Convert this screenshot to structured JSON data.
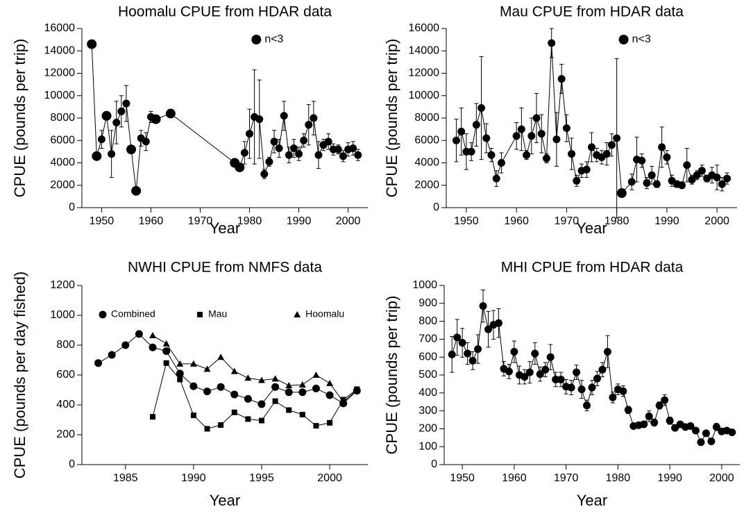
{
  "chart_data": [
    {
      "type": "line",
      "title": "Hoomalu CPUE from HDAR data",
      "x_label": "Year",
      "y_label": "CPUE (pounds per trip)",
      "x": [
        1948,
        1949,
        1950,
        1951,
        1952,
        1953,
        1954,
        1955,
        1956,
        1957,
        1958,
        1959,
        1960,
        1961,
        1964,
        1977,
        1978,
        1979,
        1980,
        1981,
        1982,
        1983,
        1984,
        1985,
        1986,
        1987,
        1988,
        1989,
        1990,
        1991,
        1992,
        1993,
        1994,
        1995,
        1996,
        1997,
        1998,
        1999,
        2000,
        2001,
        2002
      ],
      "series": [
        {
          "color": "#000000",
          "marker": "circle",
          "values": [
            null,
            null,
            6100,
            null,
            4800,
            7600,
            8600,
            9300,
            null,
            null,
            6200,
            5900,
            8100,
            null,
            null,
            null,
            null,
            4900,
            6600,
            8100,
            7900,
            3000,
            4100,
            5900,
            5300,
            8200,
            4700,
            5300,
            4800,
            6000,
            7400,
            8000,
            4700,
            5600,
            5900,
            5200,
            5200,
            4600,
            5200,
            5300,
            4700
          ],
          "errors": [
            null,
            null,
            800,
            null,
            2100,
            1900,
            1400,
            1600,
            null,
            null,
            700,
            800,
            500,
            null,
            null,
            null,
            null,
            1000,
            2200,
            4200,
            3500,
            400,
            400,
            1000,
            800,
            1300,
            700,
            800,
            600,
            600,
            1800,
            1500,
            1200,
            500,
            700,
            500,
            400,
            500,
            600,
            600,
            500
          ]
        },
        {
          "name": "n<3",
          "color": "#000000",
          "marker": "big-circle",
          "values": [
            14600,
            4600,
            null,
            8200,
            null,
            null,
            null,
            null,
            5200,
            1500,
            null,
            null,
            null,
            7900,
            8400,
            4000,
            3600,
            null,
            null,
            null,
            null,
            null,
            null,
            null,
            null,
            null,
            null,
            null,
            null,
            null,
            null,
            null,
            null,
            null,
            null,
            null,
            null,
            null,
            null,
            null,
            null
          ]
        }
      ],
      "xlim": [
        1946,
        2004
      ],
      "xticks": [
        1950,
        1960,
        1970,
        1980,
        1990,
        2000
      ],
      "ylim": [
        0,
        16000
      ],
      "yticks": [
        0,
        2000,
        4000,
        6000,
        8000,
        10000,
        12000,
        14000,
        16000
      ],
      "legend": "top"
    },
    {
      "type": "line",
      "title": "Mau CPUE from HDAR data",
      "x_label": "Year",
      "y_label": "CPUE (pounds per trip)",
      "x": [
        1948,
        1949,
        1950,
        1951,
        1952,
        1953,
        1954,
        1955,
        1956,
        1957,
        1960,
        1961,
        1962,
        1963,
        1964,
        1965,
        1966,
        1967,
        1968,
        1969,
        1970,
        1971,
        1972,
        1973,
        1974,
        1975,
        1976,
        1977,
        1978,
        1979,
        1980,
        1981,
        1983,
        1984,
        1985,
        1986,
        1987,
        1988,
        1989,
        1990,
        1991,
        1992,
        1993,
        1994,
        1995,
        1996,
        1997,
        1998,
        1999,
        2000,
        2001,
        2002
      ],
      "series": [
        {
          "color": "#000000",
          "marker": "circle",
          "values": [
            6000,
            6800,
            5000,
            5000,
            7400,
            8900,
            6200,
            4700,
            2600,
            4000,
            6400,
            7000,
            4700,
            6400,
            8000,
            6600,
            4400,
            14700,
            6100,
            11500,
            7100,
            4800,
            2400,
            3300,
            3400,
            5400,
            4700,
            4500,
            4800,
            5600,
            6200,
            null,
            2300,
            4300,
            4200,
            2200,
            2900,
            2100,
            5400,
            4500,
            2400,
            2100,
            2000,
            3800,
            2500,
            2900,
            3300,
            2600,
            2900,
            2700,
            2100,
            2600
          ],
          "errors": [
            1900,
            2100,
            1600,
            800,
            1900,
            4600,
            1300,
            600,
            700,
            900,
            1200,
            1900,
            400,
            1600,
            2200,
            1700,
            400,
            1300,
            2400,
            1300,
            1200,
            1400,
            500,
            600,
            700,
            1300,
            600,
            600,
            1000,
            1000,
            7100,
            null,
            700,
            2000,
            600,
            500,
            800,
            300,
            1800,
            600,
            500,
            300,
            300,
            1500,
            400,
            400,
            500,
            300,
            700,
            1100,
            600,
            500
          ]
        },
        {
          "name": "n<3",
          "color": "#000000",
          "marker": "big-circle",
          "values": [
            null,
            null,
            null,
            null,
            null,
            null,
            null,
            null,
            null,
            null,
            null,
            null,
            null,
            null,
            null,
            null,
            null,
            null,
            null,
            null,
            null,
            null,
            null,
            null,
            null,
            null,
            null,
            null,
            null,
            null,
            null,
            1300,
            null,
            null,
            null,
            null,
            null,
            null,
            null,
            null,
            null,
            null,
            null,
            null,
            null,
            null,
            null,
            null,
            null,
            null,
            null,
            null
          ]
        }
      ],
      "xlim": [
        1946,
        2004
      ],
      "xticks": [
        1950,
        1960,
        1970,
        1980,
        1990,
        2000
      ],
      "ylim": [
        0,
        16000
      ],
      "yticks": [
        0,
        2000,
        4000,
        6000,
        8000,
        10000,
        12000,
        14000,
        16000
      ],
      "legend": "top"
    },
    {
      "type": "line",
      "title": "NWHI CPUE from NMFS data",
      "x_label": "Year",
      "y_label": "CPUE (pounds per day fished)",
      "x": [
        1983,
        1984,
        1985,
        1986,
        1987,
        1988,
        1989,
        1990,
        1991,
        1992,
        1993,
        1994,
        1995,
        1996,
        1997,
        1998,
        1999,
        2000,
        2001,
        2002
      ],
      "series": [
        {
          "name": "Combined",
          "color": "#000000",
          "marker": "circle",
          "values": [
            680,
            735,
            800,
            875,
            785,
            760,
            610,
            525,
            490,
            520,
            470,
            440,
            405,
            520,
            485,
            485,
            510,
            465,
            410,
            495
          ]
        },
        {
          "name": "Mau",
          "color": "#000000",
          "marker": "square",
          "values": [
            null,
            null,
            null,
            null,
            320,
            680,
            570,
            330,
            240,
            265,
            350,
            305,
            295,
            425,
            365,
            335,
            260,
            280,
            435,
            505
          ]
        },
        {
          "name": "Hoomalu",
          "color": "#000000",
          "marker": "triangle",
          "values": [
            null,
            null,
            null,
            null,
            865,
            810,
            675,
            675,
            640,
            720,
            625,
            580,
            565,
            575,
            530,
            535,
            600,
            545,
            420,
            500
          ]
        }
      ],
      "xlim": [
        1981.8,
        2002.8
      ],
      "xticks": [
        1985,
        1990,
        1995,
        2000
      ],
      "ylim": [
        0,
        1200
      ],
      "yticks": [
        0,
        200,
        400,
        600,
        800,
        1000,
        1200
      ],
      "legend": "top"
    },
    {
      "type": "line",
      "title": "MHI CPUE from HDAR data",
      "x_label": "Year",
      "y_label": "CPUE (pounds per trip)",
      "x": [
        1948,
        1949,
        1950,
        1951,
        1952,
        1953,
        1954,
        1955,
        1956,
        1957,
        1958,
        1959,
        1960,
        1961,
        1962,
        1963,
        1964,
        1965,
        1966,
        1967,
        1968,
        1969,
        1970,
        1971,
        1972,
        1973,
        1974,
        1975,
        1976,
        1977,
        1978,
        1979,
        1980,
        1981,
        1982,
        1983,
        1984,
        1985,
        1986,
        1987,
        1988,
        1989,
        1990,
        1991,
        1992,
        1993,
        1994,
        1995,
        1996,
        1997,
        1998,
        1999,
        2000,
        2001,
        2002
      ],
      "series": [
        {
          "color": "#000000",
          "marker": "circle",
          "values": [
            615,
            710,
            680,
            620,
            580,
            645,
            885,
            755,
            780,
            790,
            535,
            520,
            630,
            500,
            490,
            515,
            620,
            505,
            530,
            600,
            475,
            475,
            435,
            430,
            515,
            420,
            330,
            430,
            480,
            530,
            630,
            375,
            420,
            410,
            305,
            215,
            220,
            225,
            270,
            235,
            330,
            360,
            245,
            205,
            225,
            210,
            215,
            190,
            125,
            175,
            130,
            210,
            185,
            190,
            180
          ],
          "errors": [
            100,
            100,
            80,
            60,
            50,
            80,
            90,
            100,
            80,
            80,
            40,
            40,
            60,
            50,
            40,
            60,
            60,
            40,
            40,
            70,
            40,
            40,
            40,
            40,
            40,
            50,
            30,
            40,
            40,
            40,
            90,
            30,
            30,
            30,
            20,
            10,
            10,
            15,
            30,
            20,
            20,
            30,
            20,
            15,
            15,
            10,
            10,
            10,
            10,
            10,
            10,
            20,
            15,
            15,
            15
          ]
        }
      ],
      "xlim": [
        1946.5,
        2003.5
      ],
      "xticks": [
        1950,
        1960,
        1970,
        1980,
        1990,
        2000
      ],
      "ylim": [
        0,
        1000
      ],
      "yticks": [
        0,
        100,
        200,
        300,
        400,
        500,
        600,
        700,
        800,
        900,
        1000
      ]
    }
  ]
}
